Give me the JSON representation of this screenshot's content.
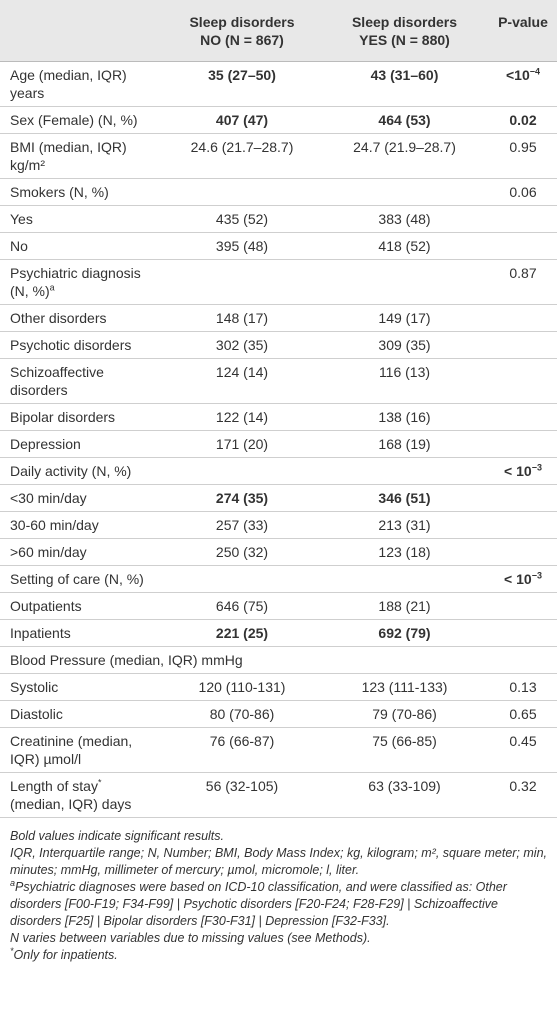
{
  "table": {
    "columns": [
      {
        "lines": [
          "Sleep disorders",
          "NO (N = 867)"
        ]
      },
      {
        "lines": [
          "Sleep disorders",
          "YES (N = 880)"
        ]
      },
      {
        "lines": [
          "P-value"
        ]
      }
    ],
    "rows": [
      {
        "label": [
          "Age (median, IQR)",
          "years"
        ],
        "no": "35 (27–50)",
        "yes": "43 (31–60)",
        "p": {
          "text": "<10",
          "sup": "−4"
        },
        "bold": true
      },
      {
        "label": [
          "Sex (Female) (N, %)"
        ],
        "no": "407 (47)",
        "yes": "464 (53)",
        "p": "0.02",
        "bold": true
      },
      {
        "label": [
          "BMI (median, IQR)",
          "kg/m²"
        ],
        "no": "24.6 (21.7–28.7)",
        "yes": "24.7 (21.9–28.7)",
        "p": "0.95"
      },
      {
        "label": [
          "Smokers (N, %)"
        ],
        "p": "0.06"
      },
      {
        "label": [
          "Yes"
        ],
        "no": "435 (52)",
        "yes": "383 (48)"
      },
      {
        "label": [
          "No"
        ],
        "no": "395 (48)",
        "yes": "418 (52)"
      },
      {
        "label": [
          "Psychiatric diagnosis",
          {
            "text": "(N, %)",
            "sup": "a"
          }
        ],
        "p": "0.87"
      },
      {
        "label": [
          "Other disorders"
        ],
        "no": "148 (17)",
        "yes": "149 (17)"
      },
      {
        "label": [
          "Psychotic disorders"
        ],
        "no": "302 (35)",
        "yes": "309 (35)"
      },
      {
        "label": [
          "Schizoaffective",
          "disorders"
        ],
        "no": "124 (14)",
        "yes": "116 (13)"
      },
      {
        "label": [
          "Bipolar disorders"
        ],
        "no": "122 (14)",
        "yes": "138 (16)"
      },
      {
        "label": [
          "Depression"
        ],
        "no": "171 (20)",
        "yes": "168 (19)"
      },
      {
        "label": [
          "Daily activity (N, %)"
        ],
        "p": {
          "text": "< 10",
          "sup": "−3"
        },
        "pbold": true
      },
      {
        "label": [
          "<30 min/day"
        ],
        "no": "274 (35)",
        "yes": "346 (51)",
        "bold": true
      },
      {
        "label": [
          "30-60 min/day"
        ],
        "no": "257 (33)",
        "yes": "213 (31)"
      },
      {
        "label": [
          ">60 min/day"
        ],
        "no": "250 (32)",
        "yes": "123 (18)"
      },
      {
        "label": [
          "Setting of care (N, %)"
        ],
        "p": {
          "text": "< 10",
          "sup": "−3"
        },
        "pbold": true
      },
      {
        "label": [
          "Outpatients"
        ],
        "no": "646 (75)",
        "yes": "188 (21)"
      },
      {
        "label": [
          "Inpatients"
        ],
        "no": "221 (25)",
        "yes": "692 (79)",
        "bold": true
      },
      {
        "label": [
          "Blood Pressure (median, IQR) mmHg"
        ],
        "span": true
      },
      {
        "label": [
          "Systolic"
        ],
        "no": "120 (110-131)",
        "yes": "123 (111-133)",
        "p": "0.13"
      },
      {
        "label": [
          "Diastolic"
        ],
        "no": "80 (70-86)",
        "yes": "79 (70-86)",
        "p": "0.65"
      },
      {
        "label": [
          "Creatinine (median,",
          "IQR) µmol/l"
        ],
        "no": "76 (66-87)",
        "yes": "75 (66-85)",
        "p": "0.45"
      },
      {
        "label": [
          {
            "text": "Length of stay",
            "sup": "*"
          },
          "(median, IQR) days"
        ],
        "no": "56 (32-105)",
        "yes": "63 (33-109)",
        "p": "0.32"
      }
    ],
    "footnotes": [
      "Bold values indicate significant results.",
      "IQR, Interquartile range; N, Number; BMI, Body Mass Index; kg, kilogram; m², square meter; min, minutes; mmHg, millimeter of mercury; µmol, micromole; l, liter.",
      {
        "sup": "a",
        "text": "Psychiatric diagnoses were based on ICD-10 classification, and were classified as: Other disorders [F00-F19; F34-F99] | Psychotic disorders [F20-F24; F28-F29] | Schizoaffective disorders [F25] | Bipolar disorders [F30-F31] | Depression [F32-F33]."
      },
      "N varies between variables due to missing values (see Methods).",
      {
        "sup": "*",
        "text": "Only for inpatients."
      }
    ]
  }
}
